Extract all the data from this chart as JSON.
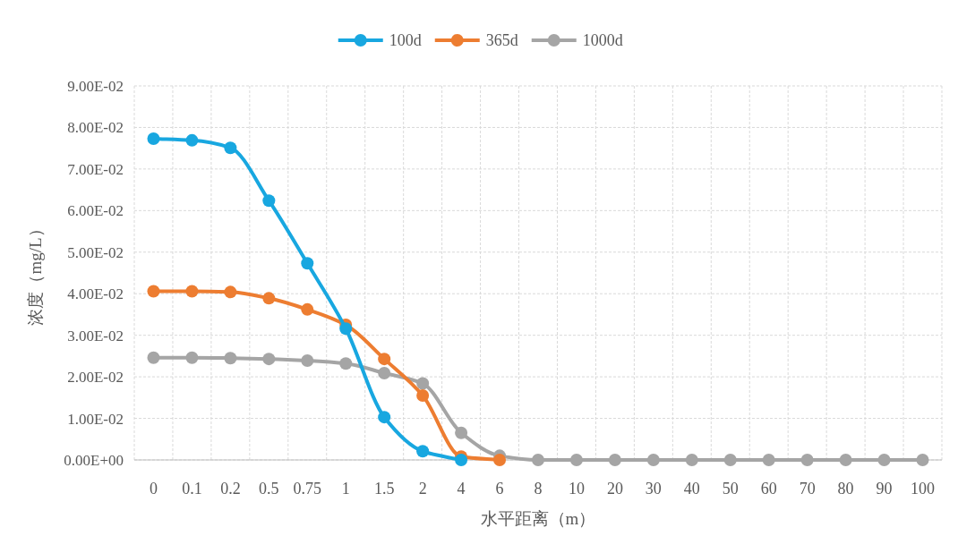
{
  "chart_data": {
    "type": "line",
    "xlabel": "水平距离（m）",
    "ylabel": "浓度（mg/L）",
    "categories": [
      "0",
      "0.1",
      "0.2",
      "0.5",
      "0.75",
      "1",
      "1.5",
      "2",
      "4",
      "6",
      "8",
      "10",
      "20",
      "30",
      "40",
      "50",
      "60",
      "70",
      "80",
      "90",
      "100"
    ],
    "series": [
      {
        "name": "100d",
        "color": "#18a7e0",
        "values": [
          0.0773,
          0.0769,
          0.0751,
          0.0624,
          0.0473,
          0.0316,
          0.0103,
          0.0021,
          0,
          null,
          null,
          null,
          null,
          null,
          null,
          null,
          null,
          null,
          null,
          null,
          null
        ]
      },
      {
        "name": "365d",
        "color": "#ed7d31",
        "values": [
          0.0406,
          0.0406,
          0.0404,
          0.0389,
          0.0362,
          0.0325,
          0.0243,
          0.0155,
          0.0008,
          0,
          null,
          null,
          null,
          null,
          null,
          null,
          null,
          null,
          null,
          null,
          null
        ]
      },
      {
        "name": "1000d",
        "color": "#a5a5a5",
        "values": [
          0.0246,
          0.0246,
          0.0245,
          0.0243,
          0.0239,
          0.0232,
          0.0209,
          0.0184,
          0.0065,
          0.001,
          0,
          0,
          0,
          0,
          0,
          0,
          0,
          0,
          0,
          0,
          0
        ]
      }
    ],
    "ylim": [
      0,
      0.09
    ],
    "yticks": [
      {
        "value": 0,
        "label": "0.00E+00"
      },
      {
        "value": 0.01,
        "label": "1.00E-02"
      },
      {
        "value": 0.02,
        "label": "2.00E-02"
      },
      {
        "value": 0.03,
        "label": "3.00E-02"
      },
      {
        "value": 0.04,
        "label": "4.00E-02"
      },
      {
        "value": 0.05,
        "label": "5.00E-02"
      },
      {
        "value": 0.06,
        "label": "6.00E-02"
      },
      {
        "value": 0.07,
        "label": "7.00E-02"
      },
      {
        "value": 0.08,
        "label": "8.00E-02"
      },
      {
        "value": 0.09,
        "label": "9.00E-02"
      }
    ],
    "grid": true,
    "legend": "top",
    "marker": "circle",
    "line_style": "solid"
  }
}
